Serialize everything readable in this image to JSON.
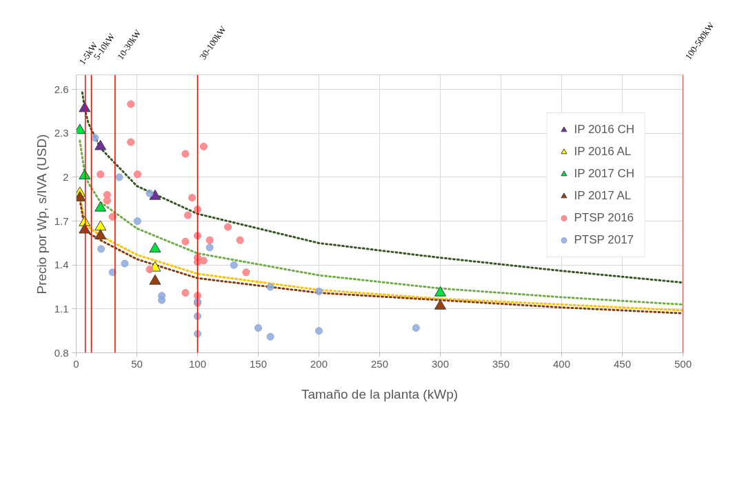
{
  "chart_data": {
    "type": "scatter",
    "xlabel": "Tamaño de la planta (kWp)",
    "ylabel": "Precio por Wp, s/IVA (USD)",
    "xlim": [
      0,
      500
    ],
    "xticks": [
      0,
      50,
      100,
      150,
      200,
      250,
      300,
      350,
      400,
      450,
      500
    ],
    "ylim": [
      0.8,
      2.7
    ],
    "yticks": [
      0.8,
      1.1,
      1.4,
      1.7,
      2,
      2.3,
      2.6
    ],
    "grid": true,
    "legend": "top right",
    "marker": "circle",
    "ref_lines": [
      {
        "axis": "x",
        "value": 7.5,
        "label": "1-5kW",
        "color": "#ff0000"
      },
      {
        "axis": "x",
        "value": 12.5,
        "label": "5-10kW",
        "color": "#ff0000"
      },
      {
        "axis": "x",
        "value": 32,
        "label": "10-30kW",
        "color": "#ff0000"
      },
      {
        "axis": "x",
        "value": 100,
        "label": "30-100kW",
        "color": "#ff0000"
      },
      {
        "axis": "x",
        "value": 500,
        "label": "100-500kW",
        "color": "#ff0000"
      }
    ],
    "series": [
      {
        "type": "line",
        "line_style": "dotted",
        "marker": "none",
        "color": "#375623",
        "x": [
          5,
          7,
          10,
          20,
          50,
          100,
          200,
          300,
          400,
          500
        ],
        "values": [
          2.58,
          2.47,
          2.37,
          2.2,
          1.94,
          1.75,
          1.55,
          1.45,
          1.36,
          1.28
        ]
      },
      {
        "type": "line",
        "line_style": "dotted",
        "marker": "none",
        "color": "#70ad47",
        "x": [
          3,
          7,
          10,
          20,
          50,
          100,
          200,
          300,
          400,
          500
        ],
        "values": [
          2.25,
          2.03,
          1.96,
          1.83,
          1.65,
          1.48,
          1.33,
          1.24,
          1.18,
          1.13
        ]
      },
      {
        "type": "line",
        "line_style": "dotted",
        "marker": "none",
        "color": "#ffc000",
        "x": [
          3,
          7,
          10,
          20,
          50,
          100,
          200,
          300,
          400,
          500
        ],
        "values": [
          1.87,
          1.7,
          1.66,
          1.6,
          1.47,
          1.34,
          1.23,
          1.17,
          1.13,
          1.09
        ]
      },
      {
        "type": "line",
        "line_style": "dotted",
        "marker": "none",
        "color": "#843c0c",
        "x": [
          3,
          7,
          10,
          20,
          50,
          100,
          200,
          300,
          400,
          500
        ],
        "values": [
          1.85,
          1.65,
          1.62,
          1.57,
          1.44,
          1.31,
          1.21,
          1.16,
          1.11,
          1.07
        ]
      },
      {
        "name": "IP 2016 CH",
        "marker": "triangle",
        "color": "#7030a0",
        "x": [
          7,
          20,
          65
        ],
        "values": [
          2.47,
          2.21,
          1.87
        ]
      },
      {
        "name": "IP 2016 AL",
        "marker": "triangle",
        "color": "#ffff00",
        "x": [
          3,
          7,
          20,
          65
        ],
        "values": [
          1.89,
          1.69,
          1.66,
          1.38
        ]
      },
      {
        "name": "IP 2017 CH",
        "marker": "triangle",
        "color": "#00e040",
        "x": [
          3,
          7,
          20,
          65,
          300
        ],
        "values": [
          2.32,
          2.01,
          1.79,
          1.51,
          1.21
        ]
      },
      {
        "name": "IP 2017 AL",
        "marker": "triangle",
        "color": "#994010",
        "x": [
          3,
          7,
          20,
          65,
          300
        ],
        "values": [
          1.86,
          1.64,
          1.6,
          1.29,
          1.12
        ]
      },
      {
        "name": "PTSP 2016",
        "color": "#ff7c80",
        "x": [
          45,
          45,
          20,
          50.5,
          25.5,
          25.5,
          30,
          90,
          105,
          95.5,
          100,
          92,
          100,
          90,
          110,
          125,
          135,
          140,
          100,
          100,
          105,
          60.5,
          90,
          100,
          100
        ],
        "values": [
          2.5,
          2.24,
          2.02,
          2.02,
          1.88,
          1.84,
          1.73,
          2.16,
          2.21,
          1.86,
          1.78,
          1.74,
          1.6,
          1.56,
          1.57,
          1.66,
          1.57,
          1.35,
          1.45,
          1.42,
          1.43,
          1.37,
          1.21,
          1.19,
          1.14
        ]
      },
      {
        "name": "PTSP 2017",
        "color": "#8ea9db",
        "x": [
          15.5,
          35.5,
          60.5,
          50.5,
          20.5,
          40,
          30,
          70.5,
          70.5,
          100,
          100,
          100,
          110,
          130,
          150,
          160,
          200,
          280,
          200,
          160
        ],
        "values": [
          2.27,
          2.0,
          1.89,
          1.7,
          1.51,
          1.41,
          1.35,
          1.19,
          1.16,
          1.15,
          1.05,
          0.93,
          1.52,
          1.4,
          0.97,
          0.91,
          0.95,
          0.97,
          1.22,
          1.25
        ]
      }
    ]
  }
}
